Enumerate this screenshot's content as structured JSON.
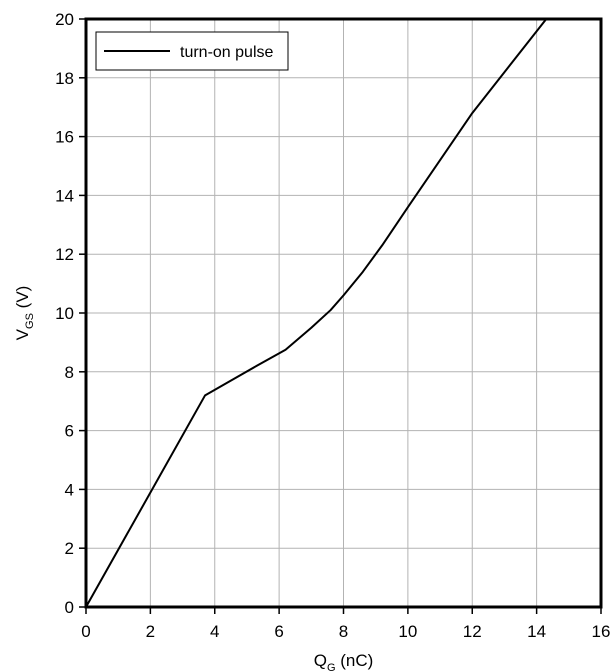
{
  "chart_data": {
    "type": "line",
    "xlabel": {
      "main": "Q",
      "sub": "G",
      "unit": " (nC)"
    },
    "ylabel": {
      "main": "V",
      "sub": "GS",
      "unit": " (V)"
    },
    "xlim": [
      0,
      16
    ],
    "ylim": [
      0,
      20
    ],
    "x_ticks": [
      0,
      2,
      4,
      6,
      8,
      10,
      12,
      14,
      16
    ],
    "y_ticks": [
      0,
      2,
      4,
      6,
      8,
      10,
      12,
      14,
      16,
      18,
      20
    ],
    "grid": true,
    "legend_position": "top-left",
    "series": [
      {
        "name": "turn-on pulse",
        "color": "#000000",
        "x": [
          0,
          3.7,
          4.5,
          5.3,
          6.2,
          7.0,
          7.6,
          8.0,
          8.6,
          9.2,
          10.0,
          12.0,
          14.3
        ],
        "y": [
          0,
          7.2,
          7.7,
          8.2,
          8.75,
          9.5,
          10.1,
          10.6,
          11.4,
          12.3,
          13.6,
          16.8,
          20.0
        ]
      }
    ]
  }
}
